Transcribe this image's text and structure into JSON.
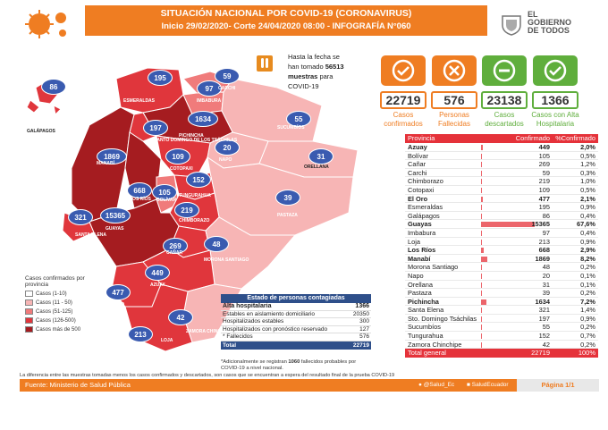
{
  "header": {
    "title": "SITUACIÓN NACIONAL POR  COVID-19 (CORONAVIRUS)",
    "subtitle": "Inicio 29/02/2020- Corte 24/04/2020 08:00  - INFOGRAFÍA N°060",
    "gov_lines": [
      "EL",
      "GOBIERNO",
      "DE TODOS"
    ]
  },
  "tests": {
    "text_pre": "Hasta la fecha se han tomado ",
    "value": "56513",
    "text_mid": " muestras",
    "text_post": "  para COVID-19"
  },
  "kpis": [
    {
      "value": "22719",
      "label": "Casos confirmados",
      "color": "#ef7d22",
      "icon": "check-icon"
    },
    {
      "value": "576",
      "label": "Personas Fallecidas",
      "color": "#ef7d22",
      "icon": "person-x-icon"
    },
    {
      "value": "23138",
      "label": "Casos descartados",
      "color": "#5fae3c",
      "icon": "minus-icon"
    },
    {
      "value": "1366",
      "label": "Casos con Alta Hospitalaria",
      "color": "#5fae3c",
      "icon": "person-check-icon"
    }
  ],
  "table": {
    "headers": [
      "Provincia",
      "Confirmado",
      "%Confirmado"
    ],
    "rows": [
      {
        "name": "Azuay",
        "value": "449",
        "pct": "2,0%",
        "n": 449,
        "hl": true
      },
      {
        "name": "Bolívar",
        "value": "105",
        "pct": "0,5%",
        "n": 105
      },
      {
        "name": "Cañar",
        "value": "269",
        "pct": "1,2%",
        "n": 269
      },
      {
        "name": "Carchi",
        "value": "59",
        "pct": "0,3%",
        "n": 59
      },
      {
        "name": "Chimborazo",
        "value": "219",
        "pct": "1,0%",
        "n": 219
      },
      {
        "name": "Cotopaxi",
        "value": "109",
        "pct": "0,5%",
        "n": 109
      },
      {
        "name": "El Oro",
        "value": "477",
        "pct": "2,1%",
        "n": 477,
        "hl": true
      },
      {
        "name": "Esmeraldas",
        "value": "195",
        "pct": "0,9%",
        "n": 195
      },
      {
        "name": "Galápagos",
        "value": "86",
        "pct": "0,4%",
        "n": 86
      },
      {
        "name": "Guayas",
        "value": "15365",
        "pct": "67,6%",
        "n": 15365,
        "hl": true
      },
      {
        "name": "Imbabura",
        "value": "97",
        "pct": "0,4%",
        "n": 97
      },
      {
        "name": "Loja",
        "value": "213",
        "pct": "0,9%",
        "n": 213
      },
      {
        "name": "Los Ríos",
        "value": "668",
        "pct": "2,9%",
        "n": 668,
        "hl": true
      },
      {
        "name": "Manabí",
        "value": "1869",
        "pct": "8,2%",
        "n": 1869,
        "hl": true
      },
      {
        "name": "Morona Santiago",
        "value": "48",
        "pct": "0,2%",
        "n": 48
      },
      {
        "name": "Napo",
        "value": "20",
        "pct": "0,1%",
        "n": 20
      },
      {
        "name": "Orellana",
        "value": "31",
        "pct": "0,1%",
        "n": 31
      },
      {
        "name": "Pastaza",
        "value": "39",
        "pct": "0,2%",
        "n": 39
      },
      {
        "name": "Pichincha",
        "value": "1634",
        "pct": "7,2%",
        "n": 1634,
        "hl": true
      },
      {
        "name": "Santa Elena",
        "value": "321",
        "pct": "1,4%",
        "n": 321
      },
      {
        "name": "Sto. Domingo Tsáchilas",
        "value": "197",
        "pct": "0,9%",
        "n": 197
      },
      {
        "name": "Sucumbíos",
        "value": "55",
        "pct": "0,2%",
        "n": 55
      },
      {
        "name": "Tungurahua",
        "value": "152",
        "pct": "0,7%",
        "n": 152
      },
      {
        "name": "Zamora Chinchipe",
        "value": "42",
        "pct": "0,2%",
        "n": 42
      }
    ],
    "footer": {
      "label": "Total general",
      "value": "22719",
      "pct": "100%"
    }
  },
  "map": {
    "bubbles": [
      "86",
      "195",
      "59",
      "97",
      "197",
      "1634",
      "55",
      "20",
      "31",
      "1869",
      "109",
      "668",
      "105",
      "152",
      "39",
      "321",
      "15365",
      "219",
      "269",
      "48",
      "449",
      "477",
      "42",
      "213"
    ],
    "labels": [
      "GALÁPAGOS",
      "ESMERALDAS",
      "CARCHI",
      "IMBABURA",
      "SUCUMBÍOS",
      "PICHINCHA",
      "SANTO DOMINGO DE LOS TSÁCHILAS",
      "NAPO",
      "ORELLANA",
      "MANABÍ",
      "COTOPAXI",
      "LOS RÍOS",
      "BOLÍVAR",
      "TUNGURAHUA",
      "PASTAZA",
      "SANTA ELENA",
      "GUAYAS",
      "CHIMBORAZO",
      "CAÑAR",
      "MORONA SANTIAGO",
      "AZUAY",
      "EL ORO",
      "LOJA",
      "ZAMORA CHINCHIPE"
    ]
  },
  "legend": {
    "title": "Casos confirmados por provincia",
    "items": [
      {
        "label": "Casos (1-10)",
        "color": "#ffffff"
      },
      {
        "label": "Casos (11 - 50)",
        "color": "#f7b5b5"
      },
      {
        "label": "Casos (51-125)",
        "color": "#f07b7b"
      },
      {
        "label": "Casos (126-500)",
        "color": "#e0363c"
      },
      {
        "label": "Casos más de 500",
        "color": "#a51c20"
      }
    ]
  },
  "status": {
    "title": "Estado de personas contagiadas",
    "rows": [
      {
        "label": "Alta hospitalaria",
        "value": "1366",
        "bold": true
      },
      {
        "label": "Estables en aislamiento domiciliario",
        "value": "20350"
      },
      {
        "label": "Hospitalizados estables",
        "value": "300"
      },
      {
        "label": "Hospitalizados con pronóstico reservado",
        "value": "127"
      },
      {
        "label": "* Fallecidos",
        "value": "576"
      }
    ],
    "total_label": "Total",
    "total_value": "22719",
    "note_pre": "*Adicionalmente se registran ",
    "note_bold": "1060",
    "note_post": " fallecidos probables por COVID-19 a nivel nacional."
  },
  "footer": {
    "note": "La diferencia entre las muestras tomadas menos los casos confirmados y descartados, son casos que se encuentran a espera del resultado final de la prueba COVID-19",
    "source": "Fuente: Ministerio de Salud Pública",
    "twitter": "@Salud_Ec",
    "facebook": "SaludEcuador",
    "page": "Página 1/1"
  }
}
